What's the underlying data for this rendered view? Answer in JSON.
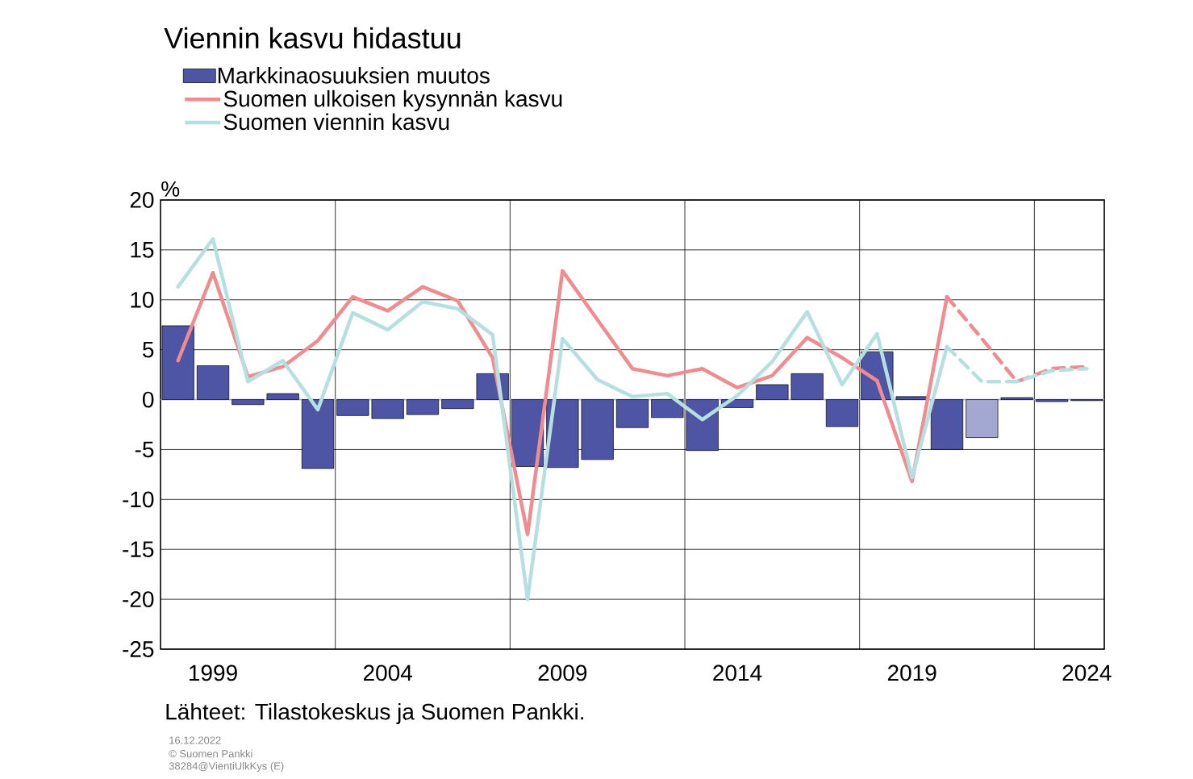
{
  "chart_data": {
    "type": "bar",
    "title": "Viennin kasvu hidastuu",
    "ylabel": "%",
    "categories": [
      null,
      "1999",
      null,
      null,
      null,
      null,
      "2004",
      null,
      null,
      null,
      null,
      "2009",
      null,
      null,
      null,
      null,
      "2014",
      null,
      null,
      null,
      null,
      "2019",
      null,
      null,
      null,
      null,
      "2024"
    ],
    "series": [
      {
        "name": "Markkinaosuuksien muutos",
        "colors": [
          "#4f55a5",
          "#4f55a5",
          "#4f55a5",
          "#4f55a5",
          "#4f55a5",
          "#4f55a5",
          "#4f55a5",
          "#4f55a5",
          "#4f55a5",
          "#4f55a5",
          "#4f55a5",
          "#4f55a5",
          "#4f55a5",
          "#4f55a5",
          "#4f55a5",
          "#4f55a5",
          "#4f55a5",
          "#4f55a5",
          "#4f55a5",
          "#4f55a5",
          "#4f55a5",
          "#4f55a5",
          "#4f55a5",
          "#a3a8d3",
          "#4f55a5",
          "#4f55a5",
          "#4f55a5"
        ],
        "values": [
          7.4,
          3.4,
          -0.5,
          0.6,
          -6.9,
          -1.6,
          -1.9,
          -1.5,
          -0.9,
          2.6,
          -6.7,
          -6.8,
          -6.0,
          -2.8,
          -1.8,
          -5.1,
          -0.8,
          1.5,
          2.6,
          -2.7,
          4.8,
          0.3,
          -5.0,
          -3.8,
          0.2,
          -0.2,
          -0.1
        ]
      },
      {
        "type": "line",
        "name": "Suomen ulkoisen kysynnän kasvu",
        "color": "#f08c90",
        "line_style": "solid",
        "values": [
          3.9,
          12.7,
          2.3,
          3.3,
          5.9,
          10.3,
          8.9,
          11.3,
          9.9,
          4.2,
          -13.5,
          12.9,
          8.0,
          3.1,
          2.4,
          3.1,
          1.2,
          2.4,
          6.2,
          4.2,
          1.9,
          -8.2,
          10.3,
          null,
          null,
          null,
          null
        ]
      },
      {
        "type": "line",
        "name": "Suomen viennin kasvu",
        "color": "#b6dfe0",
        "line_style": "solid",
        "values": [
          11.3,
          16.1,
          1.8,
          3.9,
          -1.0,
          8.7,
          7.0,
          9.8,
          9.1,
          6.5,
          -20.0,
          6.1,
          2.0,
          0.3,
          0.6,
          -2.0,
          0.4,
          3.8,
          8.8,
          1.5,
          6.6,
          -7.8,
          5.3,
          null,
          null,
          null,
          null
        ]
      },
      {
        "type": "line",
        "color": "#f08c90",
        "line_style": "dashed",
        "values": [
          null,
          null,
          null,
          null,
          null,
          null,
          null,
          null,
          null,
          null,
          null,
          null,
          null,
          null,
          null,
          null,
          null,
          null,
          null,
          null,
          null,
          null,
          10.3,
          6.1,
          1.8,
          3.1,
          3.3
        ]
      },
      {
        "type": "line",
        "color": "#b6dfe0",
        "line_style": "dashed",
        "values": [
          null,
          null,
          null,
          null,
          null,
          null,
          null,
          null,
          null,
          null,
          null,
          null,
          null,
          null,
          null,
          null,
          null,
          null,
          null,
          null,
          null,
          null,
          5.3,
          1.8,
          1.8,
          2.9,
          3.1
        ]
      }
    ],
    "ylim": [
      -25,
      20
    ],
    "yticks": [
      -25,
      -20,
      -15,
      -10,
      -5,
      0,
      5,
      10,
      15,
      20
    ],
    "grid": true,
    "legend": "top left",
    "ref_lines": [
      {
        "axis": "y",
        "value": 0,
        "color": "#a3a8d3"
      }
    ],
    "annotations": [
      "Lähteet: Tilastokeskus ja Suomen Pankki.",
      "16.12.2022",
      "© Suomen Pankki",
      "38284@VientiUlkKys (E)"
    ]
  }
}
